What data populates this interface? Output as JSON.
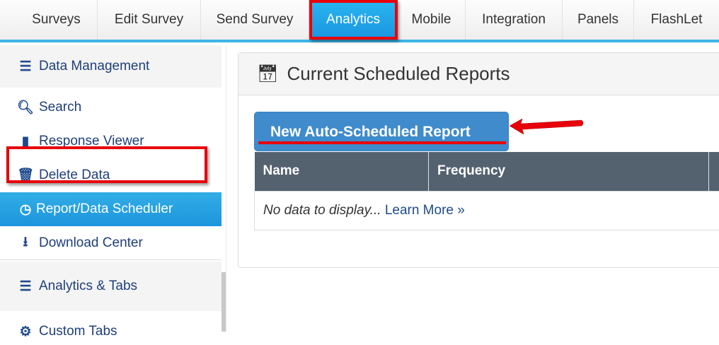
{
  "topnav": {
    "tabs": [
      {
        "label": "Surveys"
      },
      {
        "label": "Edit Survey"
      },
      {
        "label": "Send Survey"
      },
      {
        "label": "Analytics",
        "active": true
      },
      {
        "label": "Mobile"
      },
      {
        "label": "Integration"
      },
      {
        "label": "Panels"
      },
      {
        "label": "FlashLet"
      }
    ]
  },
  "sidebar": {
    "section1": "Data Management",
    "items": [
      {
        "label": "Search",
        "icon": "search-icon"
      },
      {
        "label": "Response Viewer",
        "icon": "briefcase-icon"
      },
      {
        "label": "Delete Data",
        "icon": "trash-icon"
      },
      {
        "label": "Report/Data Scheduler",
        "icon": "clock-icon",
        "active": true
      },
      {
        "label": "Download Center",
        "icon": "download-icon"
      }
    ],
    "section2": "Analytics & Tabs",
    "items2": [
      {
        "label": "Custom Tabs",
        "icon": "gears-icon"
      }
    ]
  },
  "main": {
    "title": "Current Scheduled Reports",
    "new_button": "New Auto-Scheduled Report",
    "table": {
      "columns": [
        "Name",
        "Frequency",
        ""
      ],
      "empty_text": "No data to display...",
      "learn_more": "Learn More »"
    }
  },
  "colors": {
    "accent": "#1a95e0",
    "highlight": "#e8000b",
    "table_header": "#546270",
    "button": "#3f8bcb"
  }
}
